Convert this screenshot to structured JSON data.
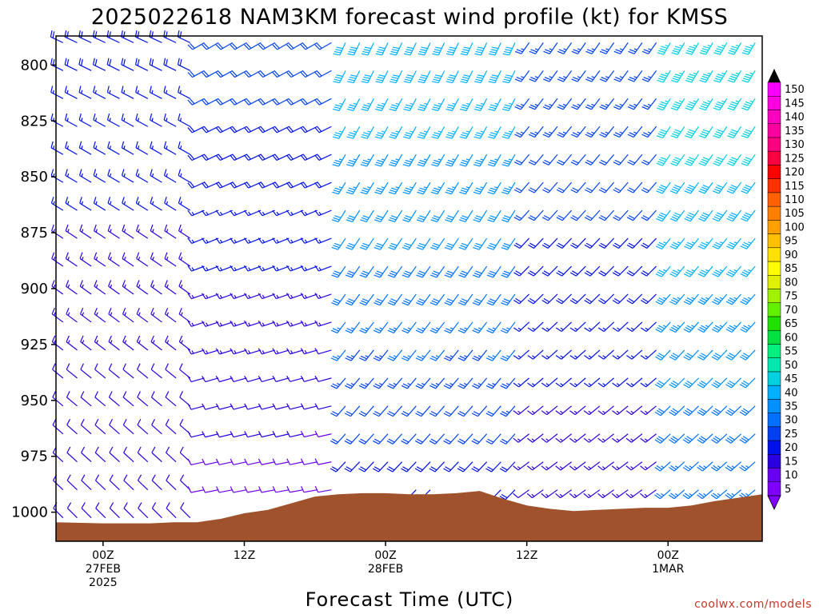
{
  "chart_data": {
    "type": "wind-barb-time-height",
    "title": "2025022618 NAM3KM forecast wind profile (kt) for KMSS",
    "xlabel": "Forecast Time (UTC)",
    "ylabel": "",
    "y_axis": {
      "unit": "hPa",
      "range": [
        1013,
        787
      ],
      "ticks": [
        800,
        825,
        850,
        875,
        900,
        925,
        950,
        975,
        1000
      ]
    },
    "x_axis": {
      "range_hours": [
        -4,
        56
      ],
      "ticks": [
        {
          "hour": 0,
          "lines": [
            "00Z",
            "27FEB",
            "2025"
          ]
        },
        {
          "hour": 12,
          "lines": [
            "12Z"
          ]
        },
        {
          "hour": 24,
          "lines": [
            "00Z",
            "28FEB"
          ]
        },
        {
          "hour": 36,
          "lines": [
            "12Z"
          ]
        },
        {
          "hour": 48,
          "lines": [
            "00Z",
            "1MAR"
          ]
        }
      ]
    },
    "colorbar": {
      "levels": [
        5,
        10,
        15,
        20,
        25,
        30,
        35,
        40,
        45,
        50,
        55,
        60,
        65,
        70,
        75,
        80,
        85,
        90,
        95,
        100,
        105,
        110,
        115,
        120,
        125,
        130,
        135,
        140,
        145,
        150
      ],
      "colors": [
        "#8000ff",
        "#6a00f0",
        "#2a00e0",
        "#0010e8",
        "#0040f0",
        "#0070ff",
        "#0090ff",
        "#00b0ff",
        "#00d0e0",
        "#00e8b0",
        "#00f080",
        "#00e040",
        "#20e000",
        "#60f000",
        "#a0f000",
        "#e0f000",
        "#ffff00",
        "#ffe000",
        "#ffc000",
        "#ffa000",
        "#ff8000",
        "#ff6000",
        "#ff3000",
        "#ff0000",
        "#ff0040",
        "#ff0080",
        "#ff00a0",
        "#ff00c0",
        "#ff00e0",
        "#ff00ff"
      ]
    },
    "terrain": {
      "color": "#a0522d",
      "hours": [
        -4,
        0,
        2,
        4,
        6,
        8,
        10,
        12,
        14,
        16,
        18,
        20,
        22,
        24,
        26,
        28,
        30,
        32,
        34,
        36,
        38,
        40,
        42,
        44,
        46,
        48,
        50,
        52,
        54,
        56
      ],
      "pressure": [
        1004.5,
        1005,
        1005,
        1005,
        1004.5,
        1004.5,
        1003,
        1000.5,
        999,
        996,
        993,
        992,
        991.5,
        991.5,
        992,
        992,
        991.5,
        990.5,
        994,
        997,
        998.5,
        999.5,
        999,
        998.5,
        998,
        998,
        997,
        995,
        993.5,
        992
      ]
    },
    "wind_profile": {
      "note": "barb grid: time vs pressure; speeds in kt",
      "time_start_hour": -4,
      "time_step_hour": 1.2,
      "time_count": 50,
      "pressure_top": 790,
      "pressure_step": 12.5,
      "pressure_count": 18,
      "regimes": [
        {
          "hours": [
            -4,
            8
          ],
          "direction_deg": 305,
          "speed_upper": 18,
          "speed_lower": 10
        },
        {
          "hours": [
            8,
            20
          ],
          "direction_deg": 250,
          "speed_upper": 22,
          "speed_lower": 8
        },
        {
          "hours": [
            20,
            36
          ],
          "direction_deg": 215,
          "speed_upper": 40,
          "speed_lower": 18
        },
        {
          "hours": [
            36,
            48
          ],
          "direction_deg": 225,
          "speed_upper": 25,
          "speed_lower": 12
        },
        {
          "hours": [
            48,
            56
          ],
          "direction_deg": 220,
          "speed_upper": 45,
          "speed_lower": 25
        }
      ]
    }
  },
  "credit": "coolwx.com/models"
}
